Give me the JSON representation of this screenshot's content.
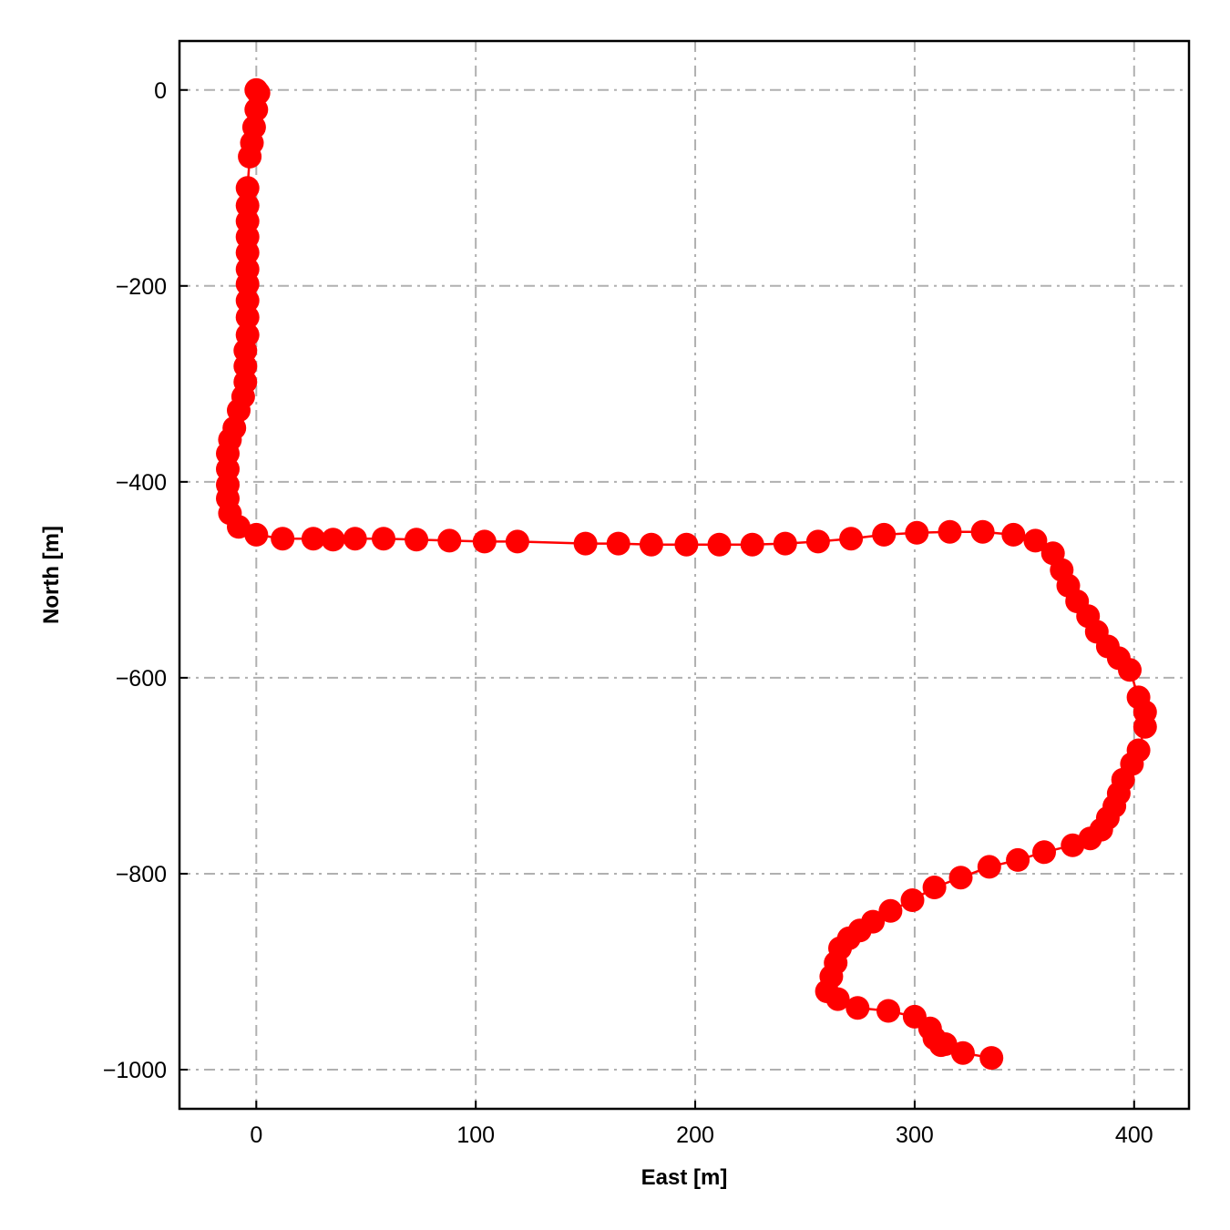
{
  "chart_data": {
    "type": "line",
    "xlabel": "East [m]",
    "ylabel": "North [m]",
    "xlim": [
      -35,
      425
    ],
    "ylim": [
      -1040,
      50
    ],
    "xticks": [
      0,
      100,
      200,
      300,
      400
    ],
    "yticks": [
      0,
      -200,
      -400,
      -600,
      -800,
      -1000
    ],
    "xtick_labels": [
      "0",
      "100",
      "200",
      "300",
      "400"
    ],
    "ytick_labels": [
      "0",
      "−200",
      "−400",
      "−600",
      "−800",
      "−1000"
    ],
    "grid": true,
    "marker": "circle",
    "color": "#ff0000",
    "series": [
      {
        "x": [
          0,
          1,
          0,
          -1,
          -2,
          -3,
          -4,
          -4,
          -4,
          -4,
          -4,
          -4,
          -4,
          -4,
          -4,
          -4,
          -5,
          -5,
          -5,
          -6,
          -8,
          -10,
          -12,
          -13,
          -13,
          -13,
          -13,
          -12,
          -8,
          0,
          12,
          26,
          35,
          45,
          58,
          73,
          88,
          104,
          119,
          150,
          165,
          180,
          196,
          211,
          226,
          241,
          256,
          271,
          286,
          301,
          316,
          331,
          345,
          355,
          363,
          367,
          370,
          374,
          379,
          383,
          388,
          393,
          398,
          402,
          405,
          405,
          402,
          399,
          395,
          393,
          391,
          388,
          385,
          380,
          372,
          359,
          347,
          334,
          321,
          309,
          299,
          289,
          281,
          275,
          270,
          266,
          264,
          262,
          260,
          265,
          274,
          288,
          300,
          307,
          309,
          312,
          314,
          322,
          335
        ],
        "y": [
          0,
          -3,
          -20,
          -38,
          -54,
          -68,
          -100,
          -118,
          -134,
          -150,
          -166,
          -183,
          -198,
          -215,
          -232,
          -250,
          -266,
          -282,
          -298,
          -313,
          -327,
          -345,
          -357,
          -371,
          -387,
          -403,
          -417,
          -432,
          -446,
          -454,
          -458,
          -458,
          -459,
          -458,
          -458,
          -459,
          -460,
          -461,
          -461,
          -463,
          -463,
          -464,
          -464,
          -464,
          -464,
          -463,
          -461,
          -458,
          -454,
          -452,
          -451,
          -451,
          -454,
          -460,
          -473,
          -490,
          -506,
          -522,
          -537,
          -553,
          -568,
          -580,
          -592,
          -620,
          -635,
          -650,
          -674,
          -688,
          -704,
          -718,
          -731,
          -743,
          -755,
          -764,
          -771,
          -778,
          -786,
          -793,
          -804,
          -814,
          -827,
          -838,
          -849,
          -858,
          -866,
          -876,
          -891,
          -905,
          -920,
          -928,
          -937,
          -940,
          -946,
          -958,
          -968,
          -975,
          -974,
          -983,
          -988
        ]
      }
    ]
  }
}
